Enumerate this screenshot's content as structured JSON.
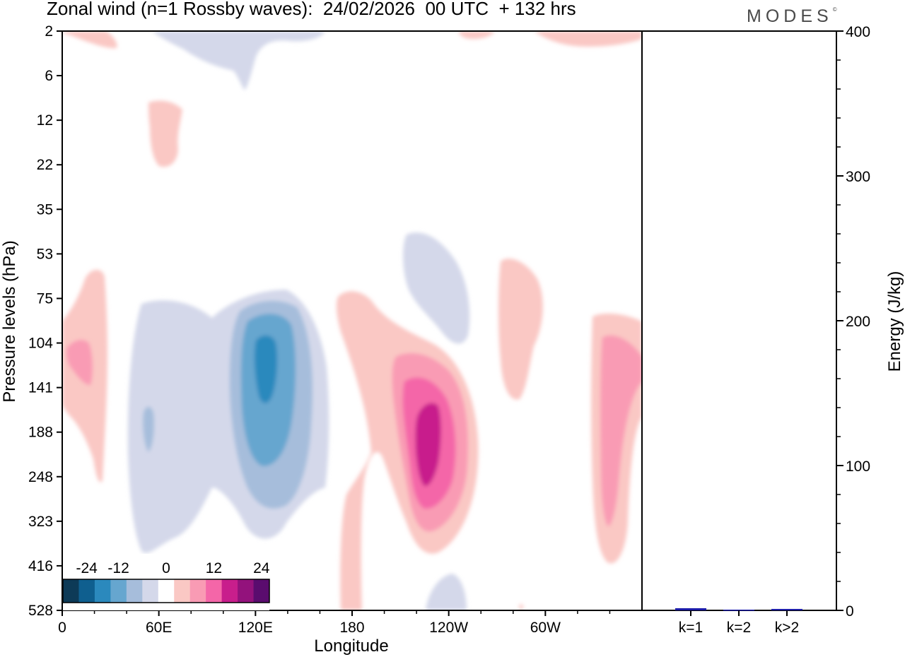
{
  "title": "Zonal wind (n=1 Rossby waves):  24/02/2026  00 UTC  + 132 hrs",
  "brand": "MODES",
  "brand_mark": "©",
  "colors": {
    "neg": [
      "#0d3a57",
      "#0f5f8f",
      "#2b89bd",
      "#66a6cf",
      "#a6bddb",
      "#d4d8ea"
    ],
    "zero": "#ffffff",
    "pos": [
      "#fac8c4",
      "#f99bb4",
      "#f466a8",
      "#c81e8c",
      "#93127c",
      "#5a0c6e"
    ],
    "energy_bar": "#1a1aa8"
  },
  "chart_data": [
    {
      "type": "heatmap",
      "title": "Zonal wind (n=1 Rossby waves):  24/02/2026  00 UTC  + 132 hrs",
      "xlabel": "Longitude",
      "ylabel": "Pressure levels (hPa)",
      "x_ticks": [
        "0",
        "60E",
        "120E",
        "180",
        "120W",
        "60W"
      ],
      "y_ticks": [
        "2",
        "6",
        "12",
        "22",
        "35",
        "53",
        "75",
        "104",
        "141",
        "188",
        "248",
        "323",
        "416",
        "528"
      ],
      "xlim": [
        0,
        360
      ],
      "colorbar": {
        "labels": [
          "-24",
          "-12",
          "0",
          "12",
          "24"
        ],
        "levels": [
          -30,
          -25,
          -20,
          -15,
          -10,
          -5,
          5,
          10,
          15,
          20,
          25,
          30
        ]
      },
      "features": [
        {
          "name": "negative-anomaly-120E",
          "lon": 126,
          "level_index": 8.3,
          "peak": -17
        },
        {
          "name": "negative-anomaly-60E",
          "lon": 62,
          "level_index": 9.0,
          "peak": -7
        },
        {
          "name": "negative-anomaly-120W",
          "lon": 240,
          "level_index": 5.6,
          "peak": -5
        },
        {
          "name": "positive-anomaly-130W",
          "lon": 228,
          "level_index": 9.2,
          "peak": 22
        },
        {
          "name": "positive-anomaly-10E",
          "lon": 13,
          "level_index": 7.6,
          "peak": 9
        },
        {
          "name": "positive-anomaly-20W",
          "lon": 345,
          "level_index": 8.3,
          "peak": 11
        },
        {
          "name": "positive-anomaly-80W",
          "lon": 283,
          "level_index": 6.6,
          "peak": 5
        },
        {
          "name": "positive-anomaly-60E-upper",
          "lon": 62,
          "level_index": 2.6,
          "peak": 5
        }
      ]
    },
    {
      "type": "bar",
      "ylabel": "Energy (J/kg)",
      "categories": [
        "k=1",
        "k=2",
        "k>2"
      ],
      "values": [
        1.5,
        0.5,
        1.0
      ],
      "ylim": [
        0,
        400
      ],
      "y_ticks": [
        "0",
        "100",
        "200",
        "300",
        "400"
      ]
    }
  ]
}
